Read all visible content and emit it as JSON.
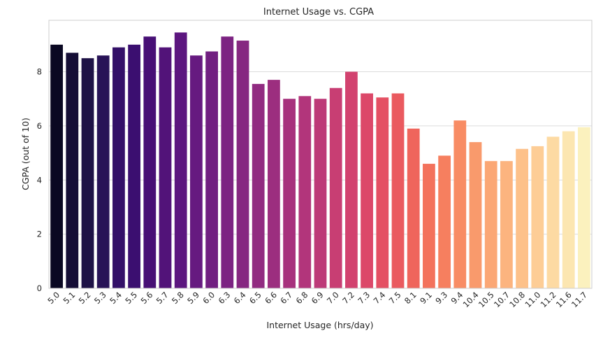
{
  "chart_data": {
    "type": "bar",
    "title": "Internet Usage vs. CGPA",
    "xlabel": "Internet Usage (hrs/day)",
    "ylabel": "CGPA (out of 10)",
    "ylim": [
      0,
      9.9
    ],
    "yticks": [
      0,
      2,
      4,
      6,
      8
    ],
    "grid": true,
    "palette": "magma",
    "categories": [
      "5.0",
      "5.1",
      "5.2",
      "5.3",
      "5.4",
      "5.5",
      "5.6",
      "5.7",
      "5.8",
      "5.9",
      "6.0",
      "6.3",
      "6.4",
      "6.5",
      "6.6",
      "6.7",
      "6.8",
      "6.9",
      "7.0",
      "7.2",
      "7.3",
      "7.4",
      "7.5",
      "8.1",
      "9.1",
      "9.3",
      "9.4",
      "10.4",
      "10.5",
      "10.7",
      "10.8",
      "11.0",
      "11.2",
      "11.6",
      "11.7"
    ],
    "values": [
      9.0,
      8.7,
      8.5,
      8.6,
      8.9,
      9.0,
      9.3,
      8.9,
      9.45,
      8.6,
      8.75,
      9.3,
      9.15,
      7.55,
      7.7,
      7.0,
      7.1,
      7.0,
      7.4,
      8.0,
      7.2,
      7.05,
      7.2,
      5.9,
      4.6,
      4.9,
      6.2,
      5.4,
      4.7,
      4.7,
      5.15,
      5.25,
      5.6,
      5.8,
      5.95
    ],
    "colors": [
      "#0a0822",
      "#150e36",
      "#1e1246",
      "#281357",
      "#331068",
      "#3b0f70",
      "#470f75",
      "#521379",
      "#5c167f",
      "#661a80",
      "#711f81",
      "#7c2382",
      "#862781",
      "#912b81",
      "#9c2e7f",
      "#a7317d",
      "#b2357b",
      "#bd3978",
      "#c83e73",
      "#d2426f",
      "#dc4869",
      "#e45063",
      "#ea5a5f",
      "#ef655c",
      "#f3725c",
      "#f67f5f",
      "#f88c64",
      "#f99a6c",
      "#fba775",
      "#fcb47f",
      "#fdc18a",
      "#fdcd96",
      "#fddaa3",
      "#fce6b1",
      "#fbf1be"
    ]
  }
}
